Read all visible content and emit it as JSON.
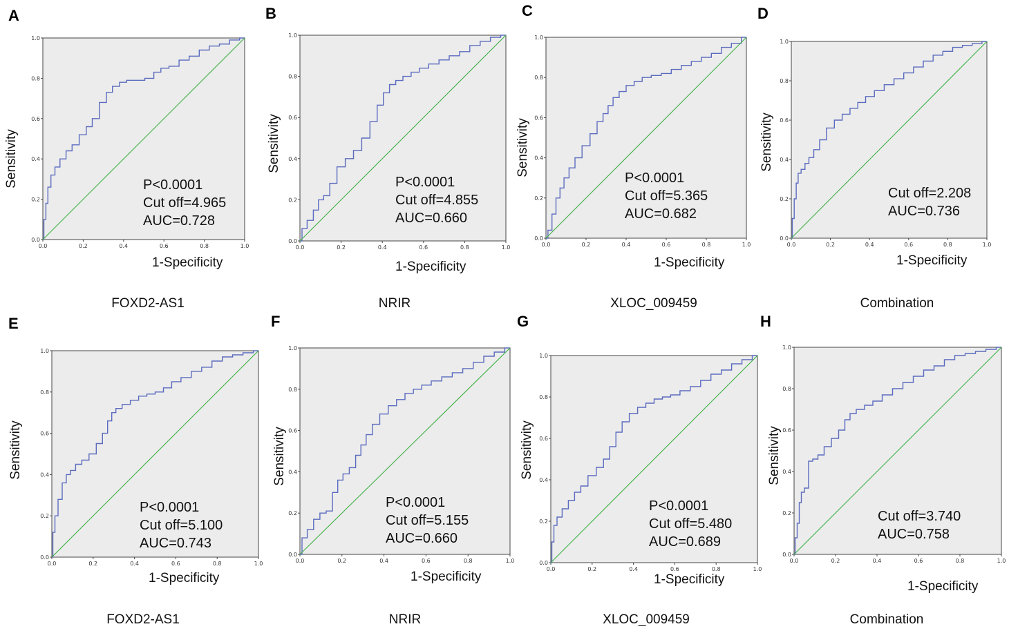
{
  "chart_data": [
    {
      "type": "line",
      "panel": "A",
      "caption": "FOXD2-AS1",
      "xlabel": "1-Specificity",
      "ylabel": "Sensitivity",
      "xlim": [
        0,
        1
      ],
      "ylim": [
        0,
        1
      ],
      "xticks": [
        "0.0",
        "0.2",
        "0.4",
        "0.6",
        "0.8",
        "1.0"
      ],
      "yticks": [
        "0.0",
        "0.2",
        "0.4",
        "0.6",
        "0.8",
        "1.0"
      ],
      "stats": [
        "P<0.0001",
        "Cut off=4.965",
        "AUC=0.728"
      ],
      "series": [
        {
          "name": "ROC",
          "color": "#5b6bbf",
          "x": [
            0,
            0.01,
            0.02,
            0.03,
            0.05,
            0.07,
            0.1,
            0.13,
            0.16,
            0.2,
            0.23,
            0.26,
            0.3,
            0.33,
            0.36,
            0.4,
            0.43,
            0.48,
            0.53,
            0.57,
            0.6,
            0.65,
            0.7,
            0.75,
            0.8,
            0.85,
            0.9,
            0.95,
            1.0
          ],
          "y": [
            0,
            0.1,
            0.18,
            0.26,
            0.32,
            0.36,
            0.4,
            0.44,
            0.47,
            0.52,
            0.56,
            0.6,
            0.68,
            0.73,
            0.76,
            0.78,
            0.79,
            0.79,
            0.8,
            0.83,
            0.85,
            0.86,
            0.89,
            0.91,
            0.94,
            0.96,
            0.97,
            0.99,
            1.0
          ]
        },
        {
          "name": "Reference",
          "color": "#3cb043",
          "x": [
            0,
            1
          ],
          "y": [
            0,
            1
          ]
        }
      ]
    },
    {
      "type": "line",
      "panel": "B",
      "caption": "NRIR",
      "xlabel": "1-Specificity",
      "ylabel": "Sensitivity",
      "xlim": [
        0,
        1
      ],
      "ylim": [
        0,
        1
      ],
      "xticks": [
        "0.0",
        "0.2",
        "0.4",
        "0.6",
        "0.8",
        "1.0"
      ],
      "yticks": [
        "0.0",
        "0.2",
        "0.4",
        "0.6",
        "0.8",
        "1.0"
      ],
      "stats": [
        "P<0.0001",
        "Cut off=4.855",
        "AUC=0.660"
      ],
      "series": [
        {
          "name": "ROC",
          "color": "#5b6bbf",
          "x": [
            0,
            0.02,
            0.05,
            0.08,
            0.1,
            0.13,
            0.16,
            0.2,
            0.24,
            0.28,
            0.32,
            0.36,
            0.39,
            0.42,
            0.45,
            0.48,
            0.52,
            0.56,
            0.6,
            0.65,
            0.7,
            0.75,
            0.8,
            0.85,
            0.9,
            0.95,
            1.0
          ],
          "y": [
            0,
            0.06,
            0.1,
            0.15,
            0.2,
            0.22,
            0.28,
            0.36,
            0.4,
            0.44,
            0.5,
            0.58,
            0.66,
            0.72,
            0.76,
            0.78,
            0.8,
            0.82,
            0.84,
            0.86,
            0.88,
            0.9,
            0.92,
            0.95,
            0.97,
            0.99,
            1.0
          ]
        },
        {
          "name": "Reference",
          "color": "#3cb043",
          "x": [
            0,
            1
          ],
          "y": [
            0,
            1
          ]
        }
      ]
    },
    {
      "type": "line",
      "panel": "C",
      "caption": "XLOC_009459",
      "xlabel": "1-Specificity",
      "ylabel": "Sensitivity",
      "xlim": [
        0,
        1
      ],
      "ylim": [
        0,
        1
      ],
      "xticks": [
        "0.0",
        "0.2",
        "0.4",
        "0.6",
        "0.8",
        "1.0"
      ],
      "yticks": [
        "0.0",
        "0.2",
        "0.4",
        "0.6",
        "0.8",
        "1.0"
      ],
      "stats": [
        "P<0.0001",
        "Cut off=5.365",
        "AUC=0.682"
      ],
      "series": [
        {
          "name": "ROC",
          "color": "#5b6bbf",
          "x": [
            0,
            0.02,
            0.04,
            0.06,
            0.08,
            0.1,
            0.13,
            0.16,
            0.2,
            0.24,
            0.27,
            0.3,
            0.32,
            0.35,
            0.38,
            0.42,
            0.46,
            0.5,
            0.55,
            0.6,
            0.65,
            0.7,
            0.75,
            0.8,
            0.85,
            0.9,
            0.95,
            1.0
          ],
          "y": [
            0,
            0.04,
            0.12,
            0.2,
            0.25,
            0.3,
            0.35,
            0.4,
            0.46,
            0.52,
            0.58,
            0.62,
            0.66,
            0.7,
            0.73,
            0.76,
            0.78,
            0.8,
            0.81,
            0.82,
            0.84,
            0.86,
            0.88,
            0.9,
            0.92,
            0.95,
            0.97,
            1.0
          ]
        },
        {
          "name": "Reference",
          "color": "#3cb043",
          "x": [
            0,
            1
          ],
          "y": [
            0,
            1
          ]
        }
      ]
    },
    {
      "type": "line",
      "panel": "D",
      "caption": "Combination",
      "xlabel": "1-Specificity",
      "ylabel": "Sensitivity",
      "xlim": [
        0,
        1
      ],
      "ylim": [
        0,
        1
      ],
      "xticks": [
        "0.0",
        "0.2",
        "0.4",
        "0.6",
        "0.8",
        "1.0"
      ],
      "yticks": [
        "0.0",
        "0.2",
        "0.4",
        "0.6",
        "0.8",
        "1.0"
      ],
      "stats": [
        "Cut off=2.208",
        "AUC=0.736"
      ],
      "series": [
        {
          "name": "ROC",
          "color": "#5b6bbf",
          "x": [
            0,
            0.01,
            0.02,
            0.03,
            0.04,
            0.06,
            0.08,
            0.1,
            0.13,
            0.16,
            0.2,
            0.24,
            0.28,
            0.32,
            0.36,
            0.4,
            0.45,
            0.5,
            0.55,
            0.6,
            0.65,
            0.7,
            0.75,
            0.8,
            0.85,
            0.9,
            0.95,
            1.0
          ],
          "y": [
            0,
            0.1,
            0.2,
            0.28,
            0.33,
            0.35,
            0.38,
            0.41,
            0.45,
            0.5,
            0.56,
            0.6,
            0.63,
            0.66,
            0.69,
            0.72,
            0.75,
            0.78,
            0.81,
            0.84,
            0.87,
            0.9,
            0.93,
            0.95,
            0.97,
            0.98,
            0.99,
            1.0
          ]
        },
        {
          "name": "Reference",
          "color": "#3cb043",
          "x": [
            0,
            1
          ],
          "y": [
            0,
            1
          ]
        }
      ]
    },
    {
      "type": "line",
      "panel": "E",
      "caption": "FOXD2-AS1",
      "xlabel": "1-Specificity",
      "ylabel": "Sensitivity",
      "xlim": [
        0,
        1
      ],
      "ylim": [
        0,
        1
      ],
      "xticks": [
        "0.0",
        "0.2",
        "0.4",
        "0.6",
        "0.8",
        "1.0"
      ],
      "yticks": [
        "0.0",
        "0.2",
        "0.4",
        "0.6",
        "0.8",
        "1.0"
      ],
      "stats": [
        "P<0.0001",
        "Cut off=5.100",
        "AUC=0.743"
      ],
      "series": [
        {
          "name": "ROC",
          "color": "#5b6bbf",
          "x": [
            0,
            0.01,
            0.02,
            0.04,
            0.06,
            0.08,
            0.1,
            0.13,
            0.16,
            0.2,
            0.23,
            0.26,
            0.28,
            0.3,
            0.32,
            0.36,
            0.4,
            0.44,
            0.48,
            0.52,
            0.56,
            0.6,
            0.65,
            0.7,
            0.75,
            0.8,
            0.85,
            0.9,
            0.95,
            1.0
          ],
          "y": [
            0,
            0.12,
            0.2,
            0.28,
            0.36,
            0.4,
            0.42,
            0.45,
            0.47,
            0.5,
            0.55,
            0.6,
            0.66,
            0.7,
            0.72,
            0.74,
            0.76,
            0.78,
            0.79,
            0.8,
            0.82,
            0.85,
            0.87,
            0.9,
            0.92,
            0.95,
            0.97,
            0.98,
            0.99,
            1.0
          ]
        },
        {
          "name": "Reference",
          "color": "#3cb043",
          "x": [
            0,
            1
          ],
          "y": [
            0,
            1
          ]
        }
      ]
    },
    {
      "type": "line",
      "panel": "F",
      "caption": "NRIR",
      "xlabel": "1-Specificity",
      "ylabel": "Sensitivity",
      "xlim": [
        0,
        1
      ],
      "ylim": [
        0,
        1
      ],
      "xticks": [
        "0.0",
        "0.2",
        "0.4",
        "0.6",
        "0.8",
        "1.0"
      ],
      "yticks": [
        "0.0",
        "0.2",
        "0.4",
        "0.6",
        "0.8",
        "1.0"
      ],
      "stats": [
        "P<0.0001",
        "Cut off=5.155",
        "AUC=0.660"
      ],
      "series": [
        {
          "name": "ROC",
          "color": "#5b6bbf",
          "x": [
            0,
            0.02,
            0.05,
            0.08,
            0.11,
            0.14,
            0.17,
            0.19,
            0.22,
            0.25,
            0.28,
            0.3,
            0.33,
            0.36,
            0.4,
            0.44,
            0.48,
            0.52,
            0.56,
            0.6,
            0.65,
            0.7,
            0.75,
            0.8,
            0.85,
            0.9,
            0.95,
            1.0
          ],
          "y": [
            0,
            0.08,
            0.12,
            0.17,
            0.2,
            0.21,
            0.3,
            0.36,
            0.39,
            0.42,
            0.48,
            0.53,
            0.58,
            0.63,
            0.68,
            0.72,
            0.75,
            0.78,
            0.8,
            0.82,
            0.84,
            0.86,
            0.88,
            0.9,
            0.93,
            0.96,
            0.98,
            1.0
          ]
        },
        {
          "name": "Reference",
          "color": "#3cb043",
          "x": [
            0,
            1
          ],
          "y": [
            0,
            1
          ]
        }
      ]
    },
    {
      "type": "line",
      "panel": "G",
      "caption": "XLOC_009459",
      "xlabel": "1-Specificity",
      "ylabel": "Sensitivity",
      "xlim": [
        0,
        1
      ],
      "ylim": [
        0,
        1
      ],
      "xticks": [
        "0.0",
        "0.2",
        "0.4",
        "0.6",
        "0.8",
        "1.0"
      ],
      "yticks": [
        "0.0",
        "0.2",
        "0.4",
        "0.6",
        "0.8",
        "1.0"
      ],
      "stats": [
        "P<0.0001",
        "Cut off=5.480",
        "AUC=0.689"
      ],
      "series": [
        {
          "name": "ROC",
          "color": "#5b6bbf",
          "x": [
            0,
            0.01,
            0.02,
            0.04,
            0.07,
            0.1,
            0.13,
            0.16,
            0.2,
            0.24,
            0.27,
            0.3,
            0.33,
            0.36,
            0.4,
            0.44,
            0.48,
            0.52,
            0.56,
            0.6,
            0.65,
            0.7,
            0.75,
            0.8,
            0.85,
            0.9,
            0.95,
            1.0
          ],
          "y": [
            0,
            0.1,
            0.18,
            0.22,
            0.26,
            0.3,
            0.34,
            0.37,
            0.42,
            0.46,
            0.5,
            0.56,
            0.63,
            0.68,
            0.72,
            0.75,
            0.77,
            0.79,
            0.8,
            0.81,
            0.83,
            0.85,
            0.88,
            0.91,
            0.93,
            0.96,
            0.98,
            1.0
          ]
        },
        {
          "name": "Reference",
          "color": "#3cb043",
          "x": [
            0,
            1
          ],
          "y": [
            0,
            1
          ]
        }
      ]
    },
    {
      "type": "line",
      "panel": "H",
      "caption": "Combination",
      "xlabel": "1-Specificity",
      "ylabel": "Sensitivity",
      "xlim": [
        0,
        1
      ],
      "ylim": [
        0,
        1
      ],
      "xticks": [
        "0.0",
        "0.2",
        "0.4",
        "0.6",
        "0.8",
        "1.0"
      ],
      "yticks": [
        "0.0",
        "0.2",
        "0.4",
        "0.6",
        "0.8",
        "1.0"
      ],
      "stats": [
        "Cut off=3.740",
        "AUC=0.758"
      ],
      "series": [
        {
          "name": "ROC",
          "color": "#5b6bbf",
          "x": [
            0,
            0.01,
            0.02,
            0.03,
            0.04,
            0.06,
            0.08,
            0.1,
            0.13,
            0.16,
            0.2,
            0.23,
            0.26,
            0.28,
            0.32,
            0.36,
            0.4,
            0.45,
            0.5,
            0.55,
            0.6,
            0.65,
            0.7,
            0.75,
            0.8,
            0.85,
            0.9,
            0.95,
            1.0
          ],
          "y": [
            0,
            0.08,
            0.15,
            0.25,
            0.3,
            0.32,
            0.45,
            0.46,
            0.48,
            0.52,
            0.56,
            0.6,
            0.65,
            0.68,
            0.7,
            0.72,
            0.74,
            0.77,
            0.8,
            0.83,
            0.86,
            0.89,
            0.91,
            0.94,
            0.96,
            0.97,
            0.98,
            0.99,
            1.0
          ]
        },
        {
          "name": "Reference",
          "color": "#3cb043",
          "x": [
            0,
            1
          ],
          "y": [
            0,
            1
          ]
        }
      ]
    }
  ]
}
